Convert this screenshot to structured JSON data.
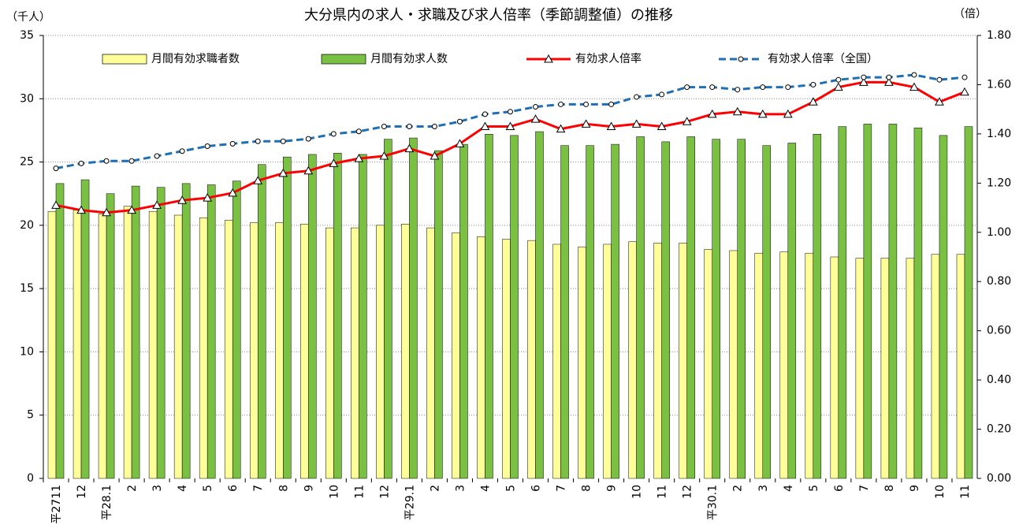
{
  "chart_data": {
    "type": "bar-line",
    "title": "大分県内の求人・求職及び求人倍率（季節調整値）の推移",
    "y_label": "（千人）",
    "y2_label": "（倍）",
    "categories": [
      "平2711",
      "12",
      "平28.1",
      "2",
      "3",
      "4",
      "5",
      "6",
      "7",
      "8",
      "9",
      "10",
      "11",
      "12",
      "平29.1",
      "2",
      "3",
      "4",
      "5",
      "6",
      "7",
      "8",
      "9",
      "10",
      "11",
      "12",
      "平30.1",
      "2",
      "3",
      "4",
      "5",
      "6",
      "7",
      "8",
      "9",
      "10",
      "11"
    ],
    "series": [
      {
        "name": "月間有効求職者数",
        "type": "bar",
        "color": "#ffff99",
        "values": [
          21.1,
          21.2,
          20.9,
          21.5,
          21.1,
          20.8,
          20.6,
          20.4,
          20.2,
          20.2,
          20.1,
          19.8,
          19.8,
          20.0,
          20.1,
          19.8,
          19.4,
          19.1,
          18.9,
          18.8,
          18.5,
          18.3,
          18.5,
          18.7,
          18.6,
          18.6,
          18.1,
          18.0,
          17.8,
          17.9,
          17.8,
          17.5,
          17.4,
          17.4,
          17.4,
          17.7,
          17.7
        ]
      },
      {
        "name": "月間有効求人数",
        "type": "bar",
        "color": "#7ac143",
        "values": [
          23.3,
          23.6,
          22.5,
          23.1,
          23.0,
          23.3,
          23.2,
          23.5,
          24.8,
          25.4,
          25.6,
          25.7,
          25.6,
          26.8,
          26.9,
          25.9,
          26.4,
          27.2,
          27.1,
          27.4,
          26.3,
          26.3,
          26.4,
          27.0,
          26.6,
          27.0,
          26.8,
          26.8,
          26.3,
          26.5,
          27.2,
          27.8,
          28.0,
          28.0,
          27.7,
          27.1,
          27.8
        ]
      },
      {
        "name": "有効求人倍率",
        "type": "line",
        "axis": "y2",
        "color": "#ff0000",
        "marker": "triangle",
        "dashed": false,
        "values": [
          1.11,
          1.09,
          1.08,
          1.09,
          1.11,
          1.13,
          1.14,
          1.16,
          1.21,
          1.24,
          1.25,
          1.28,
          1.3,
          1.31,
          1.34,
          1.31,
          1.36,
          1.43,
          1.43,
          1.46,
          1.42,
          1.44,
          1.43,
          1.44,
          1.43,
          1.45,
          1.48,
          1.49,
          1.48,
          1.48,
          1.53,
          1.59,
          1.61,
          1.61,
          1.59,
          1.53,
          1.57
        ]
      },
      {
        "name": "有効求人倍率（全国）",
        "type": "line",
        "axis": "y2",
        "color": "#1f6fb5",
        "marker": "circle",
        "dashed": true,
        "values": [
          1.26,
          1.28,
          1.29,
          1.29,
          1.31,
          1.33,
          1.35,
          1.36,
          1.37,
          1.37,
          1.38,
          1.4,
          1.41,
          1.43,
          1.43,
          1.43,
          1.45,
          1.48,
          1.49,
          1.51,
          1.52,
          1.52,
          1.52,
          1.55,
          1.56,
          1.59,
          1.59,
          1.58,
          1.59,
          1.59,
          1.6,
          1.62,
          1.63,
          1.63,
          1.64,
          1.62,
          1.63
        ]
      }
    ],
    "ylim": [
      0,
      35
    ],
    "yticks": [
      0,
      5,
      10,
      15,
      20,
      25,
      30,
      35
    ],
    "y2lim": [
      0,
      1.8
    ],
    "y2ticks": [
      {
        "value": 0,
        "label": "0.00"
      },
      {
        "value": 0.2,
        "label": "0.20"
      },
      {
        "value": 0.4,
        "label": "0.40"
      },
      {
        "value": 0.6,
        "label": "0.60"
      },
      {
        "value": 0.8,
        "label": "0.80"
      },
      {
        "value": 1,
        "label": "1.00"
      },
      {
        "value": 1.2,
        "label": "1.20"
      },
      {
        "value": 1.4,
        "label": "1.40"
      },
      {
        "value": 1.6,
        "label": "1.60"
      },
      {
        "value": 1.8,
        "label": "1.80"
      }
    ],
    "grid": true
  }
}
